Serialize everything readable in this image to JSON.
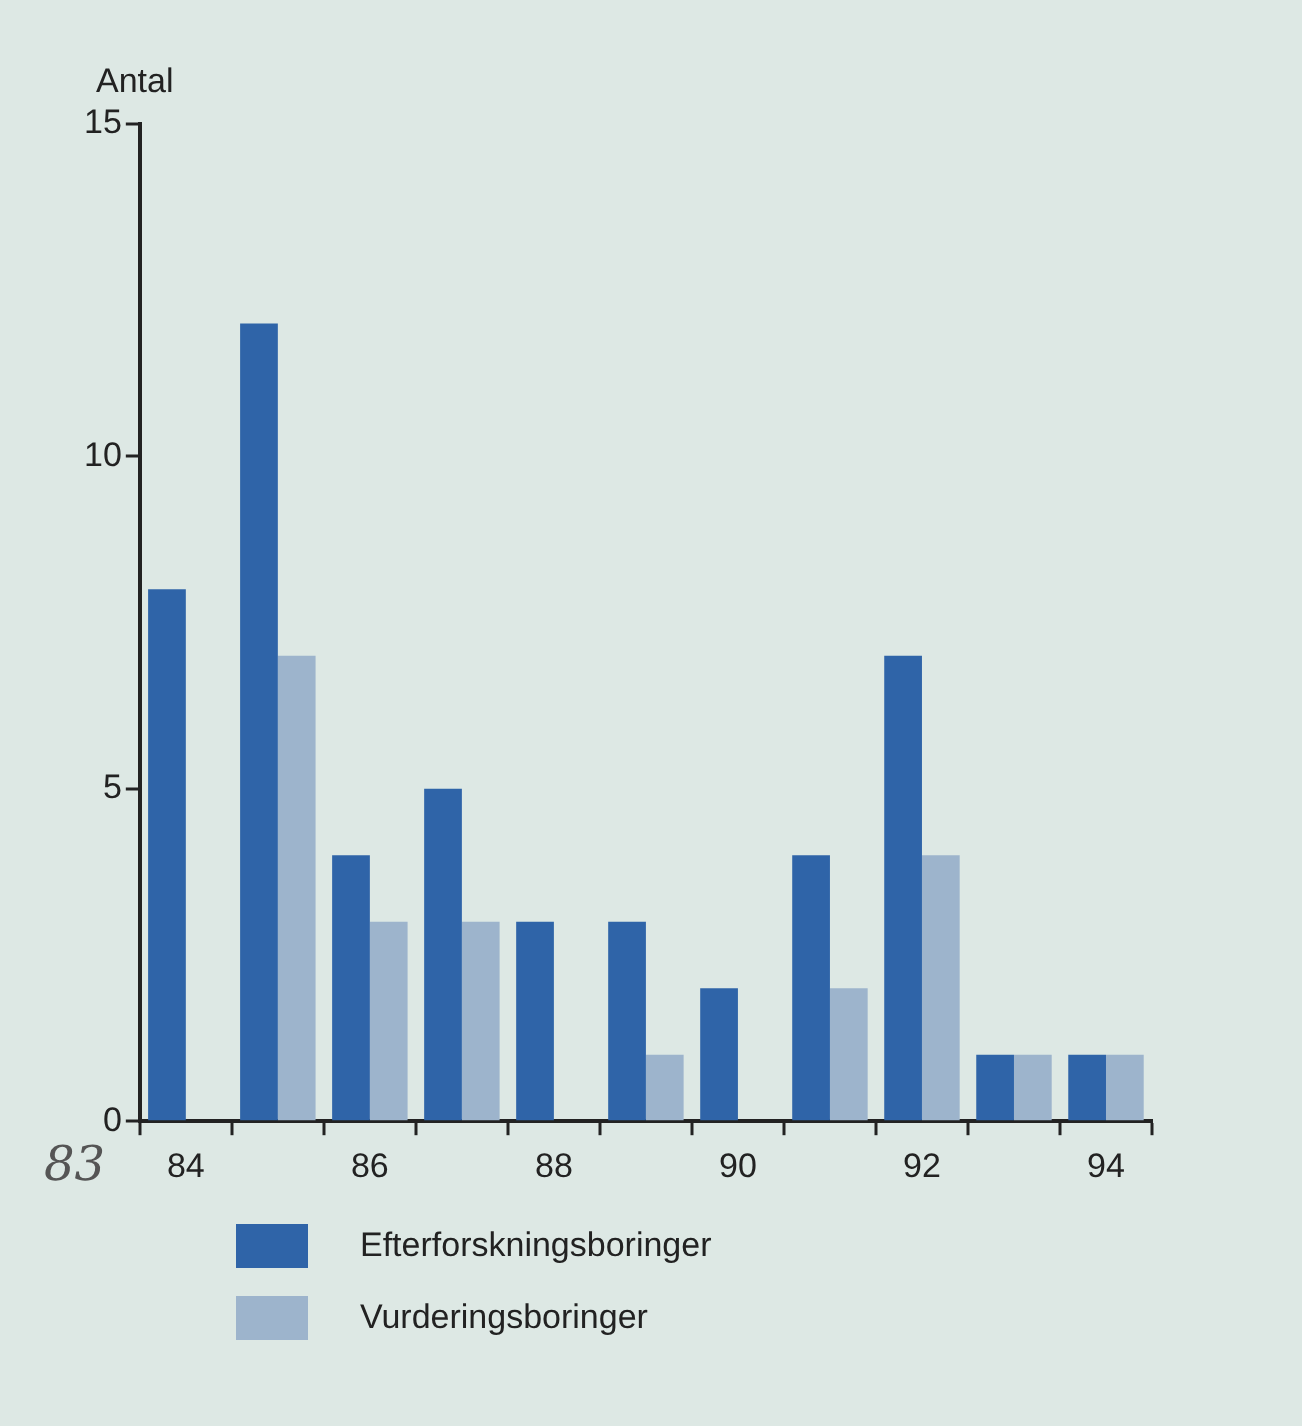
{
  "chart_data": {
    "type": "bar",
    "ylabel": "Antal",
    "categories": [
      "84",
      null,
      "86",
      null,
      "88",
      null,
      "90",
      null,
      "92",
      null,
      "94"
    ],
    "series": [
      {
        "name": "Efterforskningsboringer",
        "color": "#2f64a8",
        "values": [
          8,
          12,
          4,
          5,
          3,
          3,
          2,
          4,
          7,
          1,
          1
        ]
      },
      {
        "name": "Vurderingsboringer",
        "color": "#9db4cc",
        "values": [
          null,
          7,
          3,
          3,
          null,
          1,
          null,
          2,
          4,
          1,
          1
        ]
      }
    ],
    "ylim": [
      0,
      15
    ],
    "yticks": [
      0,
      5,
      10,
      15
    ],
    "grid": false,
    "legend": "bottom left",
    "annotations": [
      "83"
    ]
  }
}
